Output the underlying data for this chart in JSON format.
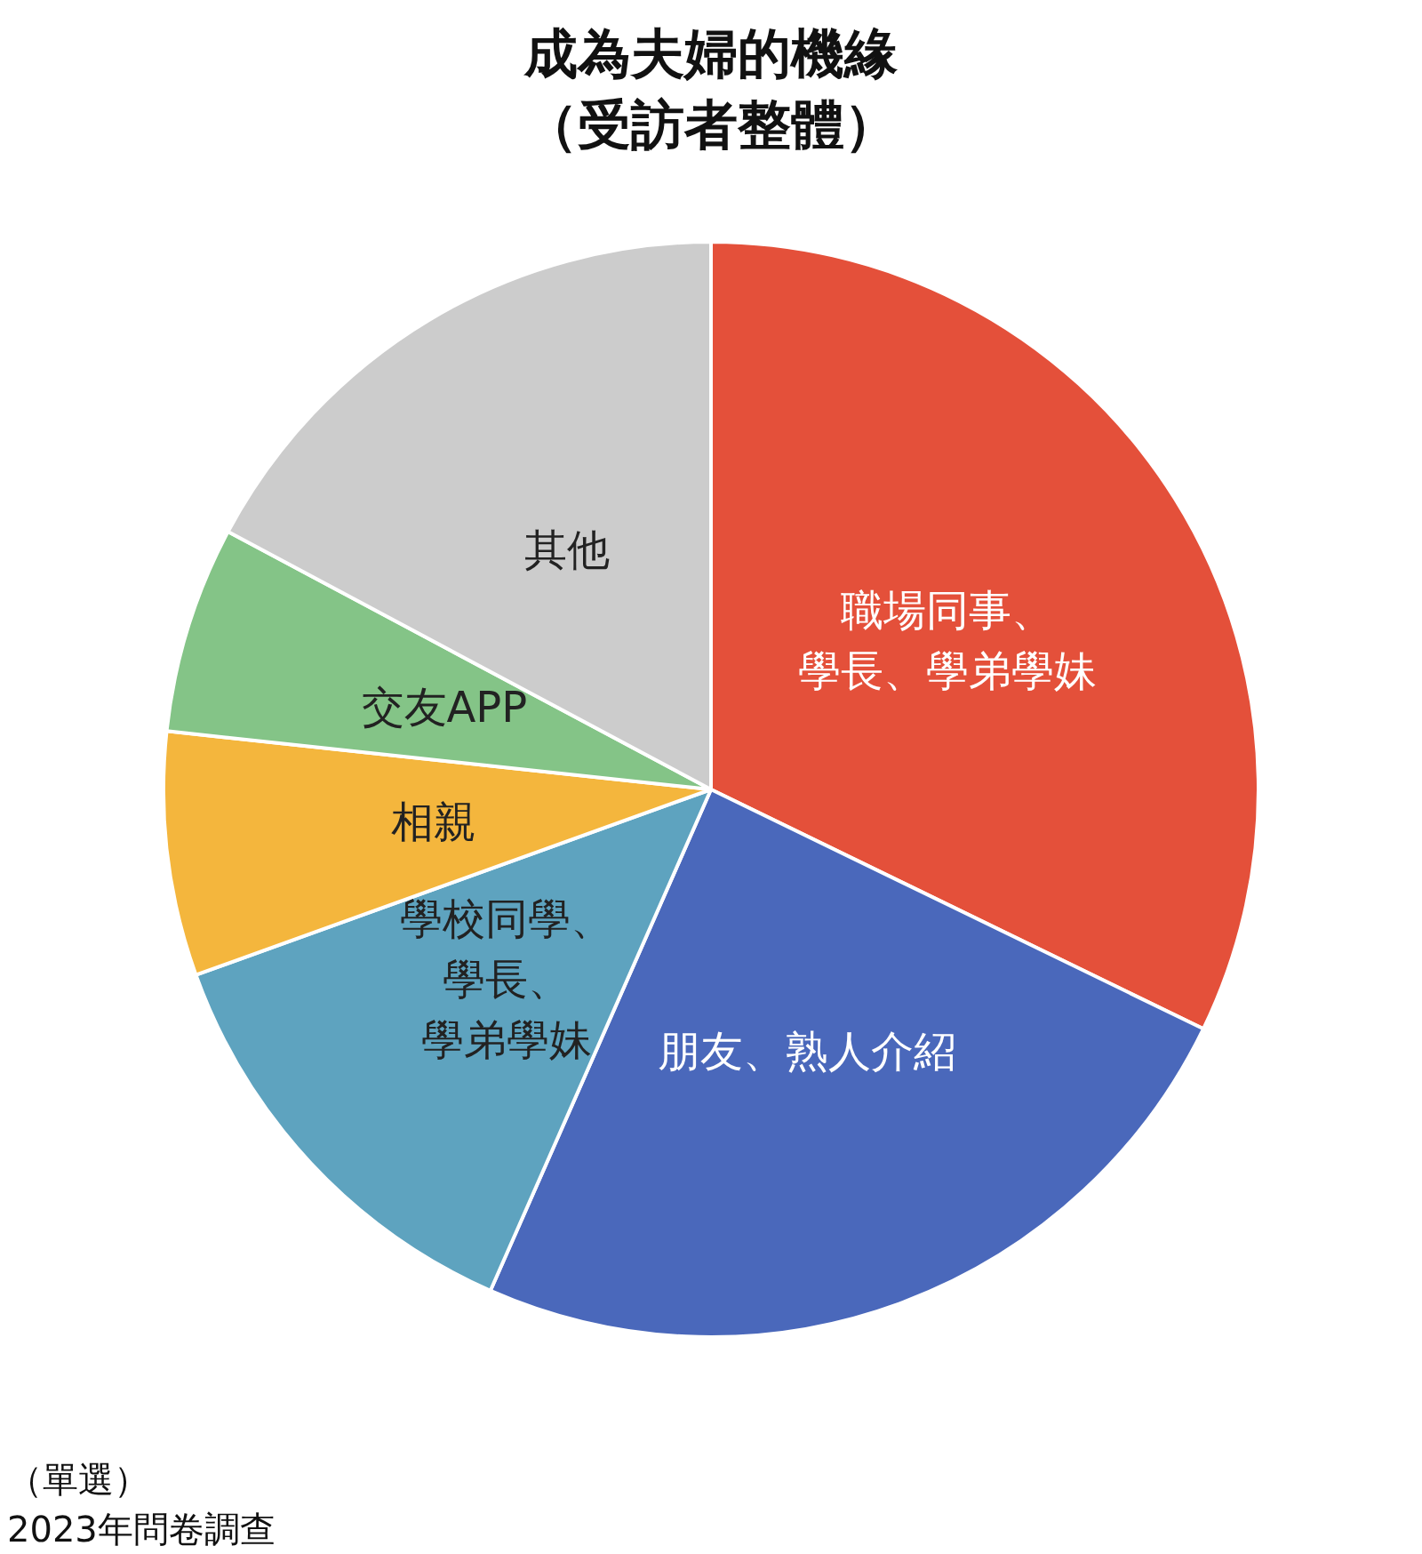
{
  "chart_data": {
    "type": "pie",
    "title": "成為夫婦的機緣（受訪者整體）",
    "categories": [
      "職場同事、學長、學弟學妹",
      "朋友、熟人介紹",
      "學校同學、學長、學弟學妹",
      "相親",
      "交友APP",
      "其他"
    ],
    "values": [
      32.2,
      24.4,
      12.9,
      7.2,
      6.1,
      17.2
    ],
    "colors": [
      "#e4503a",
      "#4a68bb",
      "#5ea3bf",
      "#f4b63d",
      "#84c487",
      "#cccccc"
    ],
    "legend": false,
    "annotations": [
      "（單選）",
      "2023年問卷調查"
    ]
  }
}
